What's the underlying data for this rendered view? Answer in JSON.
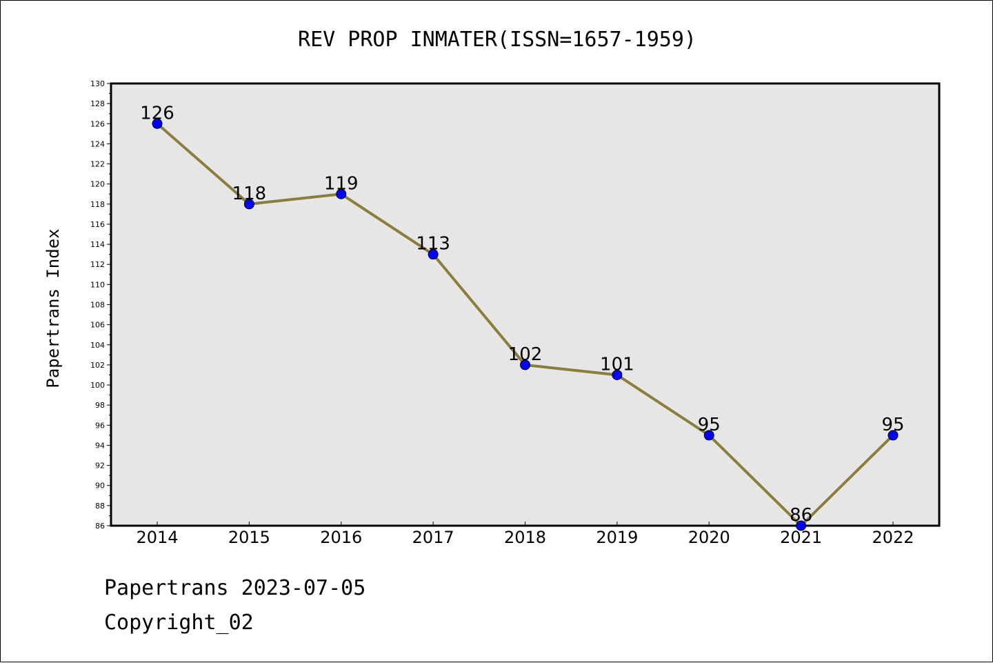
{
  "chart_data": {
    "type": "line",
    "title": "REV PROP INMATER(ISSN=1657-1959)",
    "ylabel": "Papertrans Index",
    "xlabel": "",
    "categories": [
      "2014",
      "2015",
      "2016",
      "2017",
      "2018",
      "2019",
      "2020",
      "2021",
      "2022"
    ],
    "values": [
      126,
      118,
      119,
      113,
      102,
      101,
      95,
      86,
      95
    ],
    "ylim": [
      86,
      130
    ],
    "ytick_step": 2,
    "grid": false,
    "data_labels": true,
    "colors": {
      "line": "#8b7d3a",
      "marker": "#0000ff",
      "plot_background": "#e6e6e6"
    }
  },
  "footer": {
    "date_line": "Papertrans 2023-07-05",
    "copyright_line": "Copyright_02"
  }
}
